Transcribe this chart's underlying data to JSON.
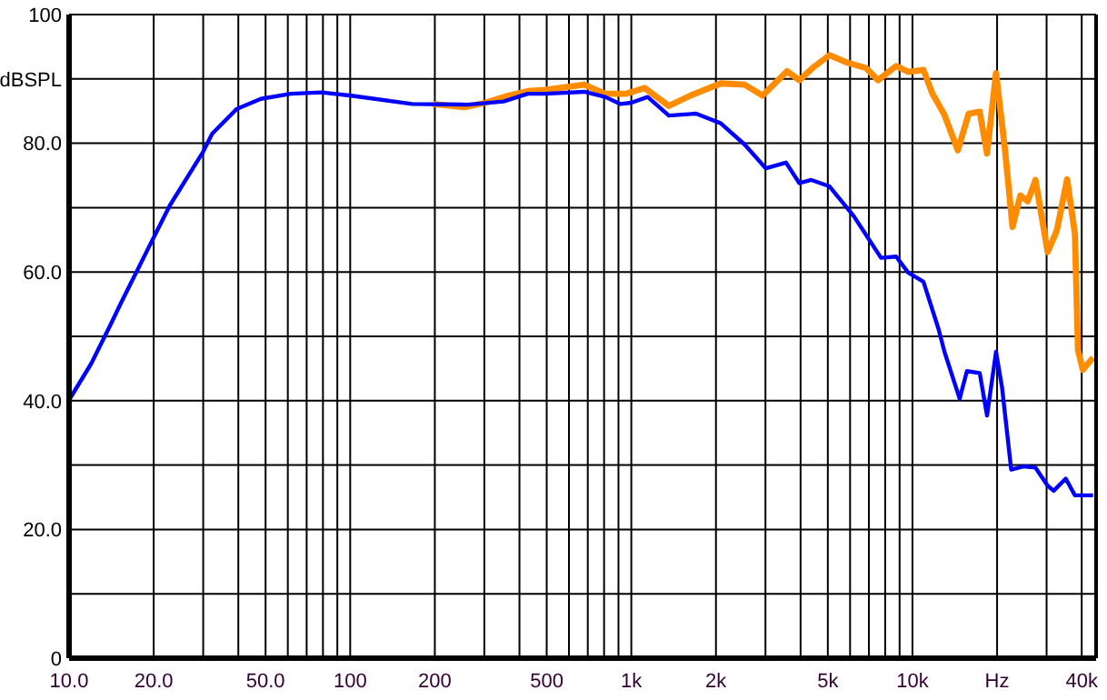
{
  "chart_data": {
    "type": "line",
    "xlabel": null,
    "log": "x",
    "grid": true,
    "marker": "none",
    "line_style": "solid",
    "xlim": [
      10,
      45000
    ],
    "ylim": [
      0,
      100
    ],
    "xticks": [
      {
        "value": 10,
        "label": "10.0"
      },
      {
        "value": 20,
        "label": "20.0"
      },
      {
        "value": 30,
        "label": null
      },
      {
        "value": 40,
        "label": null
      },
      {
        "value": 50,
        "label": "50.0"
      },
      {
        "value": 60,
        "label": null
      },
      {
        "value": 70,
        "label": null
      },
      {
        "value": 80,
        "label": null
      },
      {
        "value": 90,
        "label": null
      },
      100,
      200,
      {
        "value": 300,
        "label": null
      },
      {
        "value": 400,
        "label": null
      },
      500,
      {
        "value": 600,
        "label": null
      },
      {
        "value": 700,
        "label": null
      },
      {
        "value": 800,
        "label": null
      },
      {
        "value": 900,
        "label": null
      },
      {
        "value": 1000,
        "label": "1k"
      },
      {
        "value": 2000,
        "label": "2k"
      },
      {
        "value": 3000,
        "label": null
      },
      {
        "value": 4000,
        "label": null
      },
      {
        "value": 5000,
        "label": "5k"
      },
      {
        "value": 6000,
        "label": null
      },
      {
        "value": 7000,
        "label": null
      },
      {
        "value": 8000,
        "label": null
      },
      {
        "value": 9000,
        "label": null
      },
      {
        "value": 10000,
        "label": "10k"
      },
      {
        "value": 20000,
        "label": "Hz"
      },
      {
        "value": 30000,
        "label": null
      },
      {
        "value": 40000,
        "label": "40k"
      }
    ],
    "yticks": [
      0,
      {
        "value": 10,
        "label": null
      },
      {
        "value": 20,
        "label": "20.0"
      },
      {
        "value": 30,
        "label": null
      },
      {
        "value": 40,
        "label": "40.0"
      },
      {
        "value": 50,
        "label": null
      },
      {
        "value": 60,
        "label": "60.0"
      },
      {
        "value": 70,
        "label": null
      },
      {
        "value": 80,
        "label": "80.0"
      },
      {
        "value": 90,
        "label": "dBSPL"
      },
      100
    ],
    "series": [
      {
        "color": "#ff8c00",
        "x": [
          197,
          255,
          303,
          365,
          428,
          494,
          680,
          807,
          960,
          1115,
          1360,
          1620,
          2080,
          2530,
          2930,
          3580,
          3960,
          4470,
          5070,
          5880,
          6830,
          7540,
          8750,
          9660,
          10940,
          11780,
          13000,
          14500,
          15850,
          17350,
          18420,
          19830,
          21350,
          22700,
          24200,
          25700,
          27400,
          30260,
          32600,
          35500,
          37840,
          38800,
          40350,
          43900
        ],
        "values": [
          86.1,
          85.6,
          86.3,
          87.4,
          88.1,
          88.3,
          89.1,
          87.7,
          87.7,
          88.6,
          85.8,
          87.4,
          89.3,
          89.1,
          87.4,
          91.2,
          89.8,
          91.9,
          93.7,
          92.5,
          91.7,
          89.8,
          92.0,
          91.1,
          91.4,
          87.7,
          84.4,
          78.9,
          84.6,
          84.9,
          78.4,
          90.9,
          78.9,
          67.0,
          71.9,
          71.0,
          74.3,
          63.1,
          66.4,
          74.4,
          65.9,
          47.9,
          44.8,
          46.7
        ]
      },
      {
        "color": "#0000ff",
        "x": [
          10,
          12,
          13.9,
          15.3,
          19.6,
          22.8,
          30,
          32.3,
          39.4,
          48.1,
          61.5,
          79,
          101,
          166,
          261,
          351,
          428,
          492,
          680,
          807,
          915,
          1000,
          1143,
          1360,
          1700,
          2080,
          2530,
          3010,
          3550,
          3960,
          4370,
          5070,
          6180,
          7730,
          8750,
          9660,
          10940,
          12390,
          13000,
          14720,
          15620,
          17350,
          18420,
          19830,
          20840,
          22450,
          24790,
          27400,
          30260,
          31790,
          35100,
          37840,
          43900
        ],
        "values": [
          40.1,
          45.8,
          51.4,
          55.2,
          64.6,
          70.3,
          78.7,
          81.5,
          85.3,
          86.9,
          87.7,
          87.9,
          87.4,
          86.1,
          86.0,
          86.5,
          87.7,
          87.7,
          88.0,
          87.2,
          86.1,
          86.3,
          87.2,
          84.3,
          84.6,
          83.1,
          79.8,
          76.1,
          77.0,
          73.8,
          74.3,
          73.3,
          68.7,
          62.2,
          62.4,
          59.9,
          58.5,
          51.1,
          47.6,
          40.3,
          44.6,
          44.3,
          37.7,
          47.6,
          42.0,
          29.3,
          29.8,
          29.6,
          26.8,
          26.0,
          27.9,
          25.3,
          25.3
        ]
      }
    ]
  }
}
